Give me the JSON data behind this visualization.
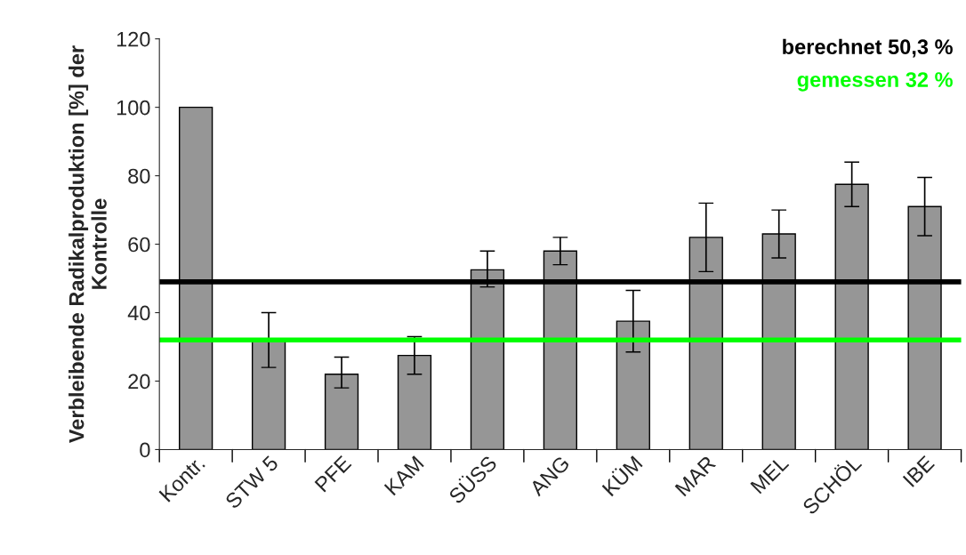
{
  "chart_data": {
    "type": "bar",
    "ylabel": "Verbleibende Radikalproduktion [%] der Kontrolle",
    "categories": [
      "Kontr.",
      "STW 5",
      "PFE",
      "KAM",
      "SÜSS",
      "ANG",
      "KÜM",
      "MAR",
      "MEL",
      "SCHÖL",
      "IBE"
    ],
    "series": [
      {
        "color": "#969696",
        "values": [
          100,
          32,
          22,
          27.5,
          52.5,
          58,
          37.5,
          62,
          63,
          77.5,
          71
        ],
        "errors": [
          null,
          [
            24,
            40
          ],
          [
            18,
            27
          ],
          [
            22,
            33
          ],
          [
            47.5,
            58
          ],
          [
            54,
            62
          ],
          [
            28.5,
            46.5
          ],
          [
            52,
            72
          ],
          [
            56,
            70
          ],
          [
            71,
            84
          ],
          [
            62.5,
            79.5
          ]
        ]
      }
    ],
    "ylim": [
      0,
      120
    ],
    "yticks": [
      0,
      20,
      40,
      60,
      80,
      100,
      120
    ],
    "grid": false,
    "legend": false,
    "ref_lines": [
      {
        "axis": "y",
        "value": 49,
        "label": "berechnet 50,3 %",
        "color": "#000000"
      },
      {
        "axis": "y",
        "value": 32,
        "label": "gemessen 32 %",
        "color": "#00ff00"
      }
    ]
  }
}
